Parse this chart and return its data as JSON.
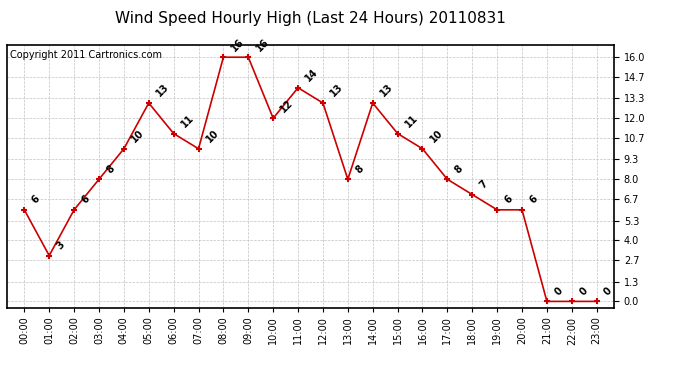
{
  "title": "Wind Speed Hourly High (Last 24 Hours) 20110831",
  "copyright": "Copyright 2011 Cartronics.com",
  "hours": [
    "00:00",
    "01:00",
    "02:00",
    "03:00",
    "04:00",
    "05:00",
    "06:00",
    "07:00",
    "08:00",
    "09:00",
    "10:00",
    "11:00",
    "12:00",
    "13:00",
    "14:00",
    "15:00",
    "16:00",
    "17:00",
    "18:00",
    "19:00",
    "20:00",
    "21:00",
    "22:00",
    "23:00"
  ],
  "values": [
    6,
    3,
    6,
    8,
    10,
    13,
    11,
    10,
    16,
    16,
    12,
    14,
    13,
    8,
    13,
    11,
    10,
    8,
    7,
    6,
    6,
    0,
    0,
    0
  ],
  "line_color": "#cc0000",
  "marker_color": "#cc0000",
  "bg_color": "#ffffff",
  "plot_bg": "#ffffff",
  "grid_color": "#bbbbbb",
  "yticks": [
    0.0,
    1.3,
    2.7,
    4.0,
    5.3,
    6.7,
    8.0,
    9.3,
    10.7,
    12.0,
    13.3,
    14.7,
    16.0
  ],
  "ylim": [
    -0.4,
    16.8
  ],
  "title_fontsize": 11,
  "label_fontsize": 7,
  "annotation_fontsize": 7,
  "copyright_fontsize": 7
}
